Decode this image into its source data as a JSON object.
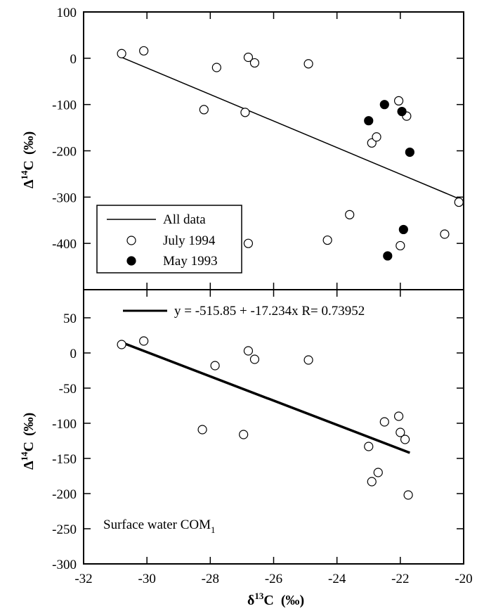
{
  "chart_data": [
    {
      "type": "scatter",
      "panel": "top",
      "xlim": [
        -32,
        -20
      ],
      "ylim": [
        -500,
        100
      ],
      "y_ticks": [
        100,
        0,
        -100,
        -200,
        -300,
        -400
      ],
      "ylabel": {
        "prefix": "Δ",
        "sup": "14",
        "main": "C",
        "unit": "(‰)"
      },
      "legend": {
        "position": "lower-left",
        "entries": [
          "All data",
          "July 1994",
          "May 1993"
        ]
      },
      "series": [
        {
          "name": "July 1994",
          "marker": "open-circle",
          "points": [
            [
              -30.8,
              10
            ],
            [
              -30.1,
              16
            ],
            [
              -27.8,
              -20
            ],
            [
              -26.8,
              2
            ],
            [
              -26.6,
              -10
            ],
            [
              -24.9,
              -12
            ],
            [
              -28.2,
              -111
            ],
            [
              -26.9,
              -117
            ],
            [
              -22.05,
              -92
            ],
            [
              -21.8,
              -125
            ],
            [
              -22.9,
              -183
            ],
            [
              -22.75,
              -170
            ],
            [
              -23.6,
              -338
            ],
            [
              -24.3,
              -393
            ],
            [
              -26.8,
              -400
            ],
            [
              -22.0,
              -405
            ],
            [
              -20.6,
              -380
            ],
            [
              -20.15,
              -311
            ]
          ]
        },
        {
          "name": "May 1993",
          "marker": "filled-circle",
          "points": [
            [
              -23.0,
              -135
            ],
            [
              -22.5,
              -100
            ],
            [
              -21.95,
              -115
            ],
            [
              -21.7,
              -203
            ],
            [
              -21.9,
              -370
            ],
            [
              -22.4,
              -427
            ]
          ]
        },
        {
          "name": "All data",
          "type": "line",
          "points": [
            [
              -30.8,
              2
            ],
            [
              -20.2,
              -302
            ]
          ]
        }
      ]
    },
    {
      "type": "scatter",
      "panel": "bottom",
      "xlim": [
        -32,
        -20
      ],
      "ylim": [
        -300,
        90
      ],
      "x_ticks": [
        -32,
        -30,
        -28,
        -26,
        -24,
        -22,
        -20
      ],
      "y_ticks": [
        50,
        0,
        -50,
        -100,
        -150,
        -200,
        -250,
        -300
      ],
      "xlabel": {
        "prefix": "δ",
        "sup": "13",
        "main": "C",
        "unit": "(‰)"
      },
      "ylabel": {
        "prefix": "Δ",
        "sup": "14",
        "main": "C",
        "unit": "(‰)"
      },
      "fit_equation": "y = -515.85 + -17.234x R= 0.73952",
      "annotation": {
        "text": "Surface water COM",
        "sub": "1"
      },
      "series": [
        {
          "marker": "open-circle",
          "points": [
            [
              -30.8,
              12
            ],
            [
              -30.1,
              17
            ],
            [
              -27.85,
              -18
            ],
            [
              -26.8,
              3
            ],
            [
              -26.6,
              -9
            ],
            [
              -24.9,
              -10
            ],
            [
              -28.25,
              -109
            ],
            [
              -26.95,
              -116
            ],
            [
              -23.0,
              -133
            ],
            [
              -22.9,
              -183
            ],
            [
              -22.7,
              -170
            ],
            [
              -22.5,
              -98
            ],
            [
              -22.05,
              -90
            ],
            [
              -22.0,
              -113
            ],
            [
              -21.85,
              -123
            ],
            [
              -21.75,
              -202
            ]
          ]
        },
        {
          "type": "line",
          "points": [
            [
              -30.8,
              15
            ],
            [
              -21.7,
              -142
            ]
          ]
        }
      ]
    }
  ]
}
